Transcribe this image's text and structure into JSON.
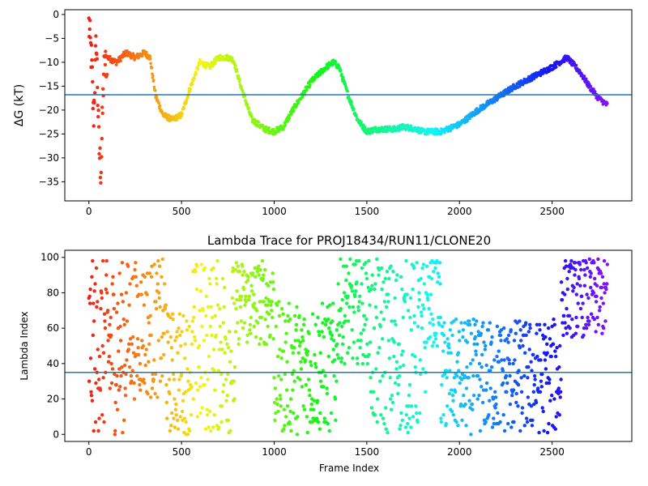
{
  "chart_data": [
    {
      "type": "scatter",
      "title": "",
      "xlabel": "",
      "ylabel": "ΔG (kT)",
      "xlim": [
        -130,
        2930
      ],
      "ylim": [
        -39,
        1
      ],
      "xticks": [
        0,
        500,
        1000,
        1500,
        2000,
        2500
      ],
      "yticks": [
        0,
        -5,
        -10,
        -15,
        -20,
        -25,
        -30,
        -35
      ],
      "hline": -16.8,
      "colormap": "rainbow (red at frame 0 → violet at last frame)",
      "series_shape": {
        "description": "one point per frame, colored by frame index",
        "knots": [
          [
            0,
            -2
          ],
          [
            15,
            -10
          ],
          [
            25,
            -22
          ],
          [
            40,
            -5
          ],
          [
            55,
            -28
          ],
          [
            65,
            -33
          ],
          [
            80,
            -12
          ],
          [
            100,
            -9
          ],
          [
            150,
            -10
          ],
          [
            200,
            -8
          ],
          [
            250,
            -9
          ],
          [
            300,
            -8
          ],
          [
            330,
            -9
          ],
          [
            360,
            -17
          ],
          [
            400,
            -21
          ],
          [
            450,
            -22
          ],
          [
            500,
            -21
          ],
          [
            550,
            -15
          ],
          [
            600,
            -10
          ],
          [
            650,
            -11
          ],
          [
            700,
            -9
          ],
          [
            750,
            -9
          ],
          [
            780,
            -9.5
          ],
          [
            820,
            -15
          ],
          [
            880,
            -22
          ],
          [
            950,
            -24
          ],
          [
            1000,
            -24.5
          ],
          [
            1050,
            -23.5
          ],
          [
            1100,
            -20
          ],
          [
            1200,
            -14
          ],
          [
            1280,
            -11
          ],
          [
            1320,
            -10
          ],
          [
            1350,
            -11
          ],
          [
            1400,
            -17
          ],
          [
            1450,
            -22
          ],
          [
            1500,
            -24.5
          ],
          [
            1550,
            -24
          ],
          [
            1600,
            -24
          ],
          [
            1650,
            -24
          ],
          [
            1700,
            -23.5
          ],
          [
            1770,
            -24
          ],
          [
            1800,
            -24.5
          ],
          [
            1900,
            -24.5
          ],
          [
            2000,
            -23
          ],
          [
            2100,
            -20
          ],
          [
            2200,
            -17.5
          ],
          [
            2300,
            -15
          ],
          [
            2400,
            -13
          ],
          [
            2500,
            -11
          ],
          [
            2580,
            -9
          ],
          [
            2650,
            -12
          ],
          [
            2700,
            -15
          ],
          [
            2750,
            -17.5
          ],
          [
            2800,
            -19
          ]
        ]
      }
    },
    {
      "type": "scatter",
      "title": "Lambda Trace for PROJ18434/RUN11/CLONE20",
      "xlabel": "Frame Index",
      "ylabel": "Lambda Index",
      "xlim": [
        -130,
        2930
      ],
      "ylim": [
        -4,
        104
      ],
      "xticks": [
        0,
        500,
        1000,
        1500,
        2000,
        2500
      ],
      "yticks": [
        0,
        20,
        40,
        60,
        80,
        100
      ],
      "hline": 35,
      "colormap": "rainbow (red at frame 0 → violet at last frame)",
      "series_shape": {
        "description": "one point per frame, lambda index oscillating between 0 and 99, colored by frame index",
        "regimes": [
          [
            0,
            60,
            0,
            99
          ],
          [
            60,
            200,
            0,
            99
          ],
          [
            200,
            420,
            20,
            99
          ],
          [
            420,
            560,
            0,
            70
          ],
          [
            560,
            800,
            0,
            99
          ],
          [
            800,
            1000,
            50,
            99
          ],
          [
            1000,
            1340,
            0,
            75
          ],
          [
            1340,
            1520,
            40,
            99
          ],
          [
            1520,
            1820,
            0,
            99
          ],
          [
            1820,
            1900,
            50,
            99
          ],
          [
            1900,
            2550,
            0,
            65
          ],
          [
            2550,
            2800,
            55,
            99
          ]
        ]
      }
    }
  ]
}
